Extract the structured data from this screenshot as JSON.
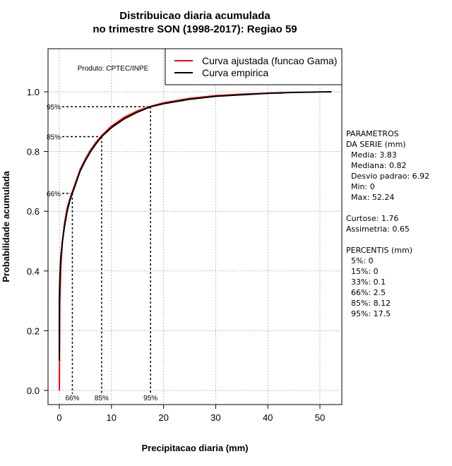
{
  "chart_data": {
    "type": "line",
    "title": [
      "Distribuicao diaria acumulada",
      "no trimestre SON (1998-2017): Regiao 59"
    ],
    "xlabel": "Precipitacao diaria (mm)",
    "ylabel": "Probabilidade acumulada",
    "xlim": [
      -2,
      54.5
    ],
    "ylim": [
      -0.05,
      1.13
    ],
    "xticks": [
      0,
      10,
      20,
      30,
      40,
      50
    ],
    "yticks": [
      "0.0",
      "0.2",
      "0.4",
      "0.6",
      "0.8",
      "1.0"
    ],
    "grid": true,
    "legend_position": "top-right",
    "product_note": "Produto: CPTEC/INPE",
    "series": [
      {
        "name": "Curva ajustada (funcao Gama)",
        "color": "#ff0000",
        "x": [
          0,
          0.1,
          0.3,
          0.6,
          1,
          1.5,
          2,
          2.5,
          3,
          4,
          5,
          6,
          7,
          8.12,
          10,
          12.5,
          15,
          17.5,
          20,
          25,
          30,
          35,
          40,
          43
        ],
        "y": [
          0,
          0.3,
          0.42,
          0.5,
          0.56,
          0.61,
          0.64,
          0.665,
          0.69,
          0.74,
          0.775,
          0.805,
          0.83,
          0.853,
          0.885,
          0.915,
          0.936,
          0.951,
          0.963,
          0.978,
          0.987,
          0.992,
          0.995,
          0.996
        ]
      },
      {
        "name": "Curva empirica",
        "color": "#000000",
        "x": [
          0,
          0,
          0.1,
          0.3,
          0.6,
          1,
          1.5,
          2,
          2.5,
          3,
          4,
          5,
          6,
          7,
          8.12,
          10,
          12.5,
          15,
          17.5,
          20,
          25,
          30,
          35,
          40,
          45,
          52.24
        ],
        "y": [
          0.1,
          0.3,
          0.38,
          0.45,
          0.5,
          0.55,
          0.6,
          0.635,
          0.66,
          0.685,
          0.735,
          0.77,
          0.8,
          0.825,
          0.85,
          0.88,
          0.91,
          0.932,
          0.95,
          0.96,
          0.975,
          0.985,
          0.99,
          0.995,
          0.998,
          1.0
        ]
      }
    ],
    "percentile_marks": [
      {
        "label": "66%",
        "x": 2.5,
        "y": 0.66
      },
      {
        "label": "85%",
        "x": 8.12,
        "y": 0.85
      },
      {
        "label": "95%",
        "x": 17.5,
        "y": 0.95
      }
    ]
  },
  "side_panel": {
    "lines": [
      "PARAMETROS",
      "DA SERIE (mm)",
      "  Media: 3.83",
      "  Mediana: 0.82",
      "  Desvio padrao: 6.92",
      "  Min: 0",
      "  Max: 52.24",
      "",
      "Curtose: 1.76",
      "Assimetria: 0.65",
      "",
      "PERCENTIS (mm)",
      "  5%: 0",
      "  15%: 0",
      "  33%: 0.1",
      "  66%: 2.5",
      "  85%: 8.12",
      "  95%: 17.5"
    ]
  }
}
